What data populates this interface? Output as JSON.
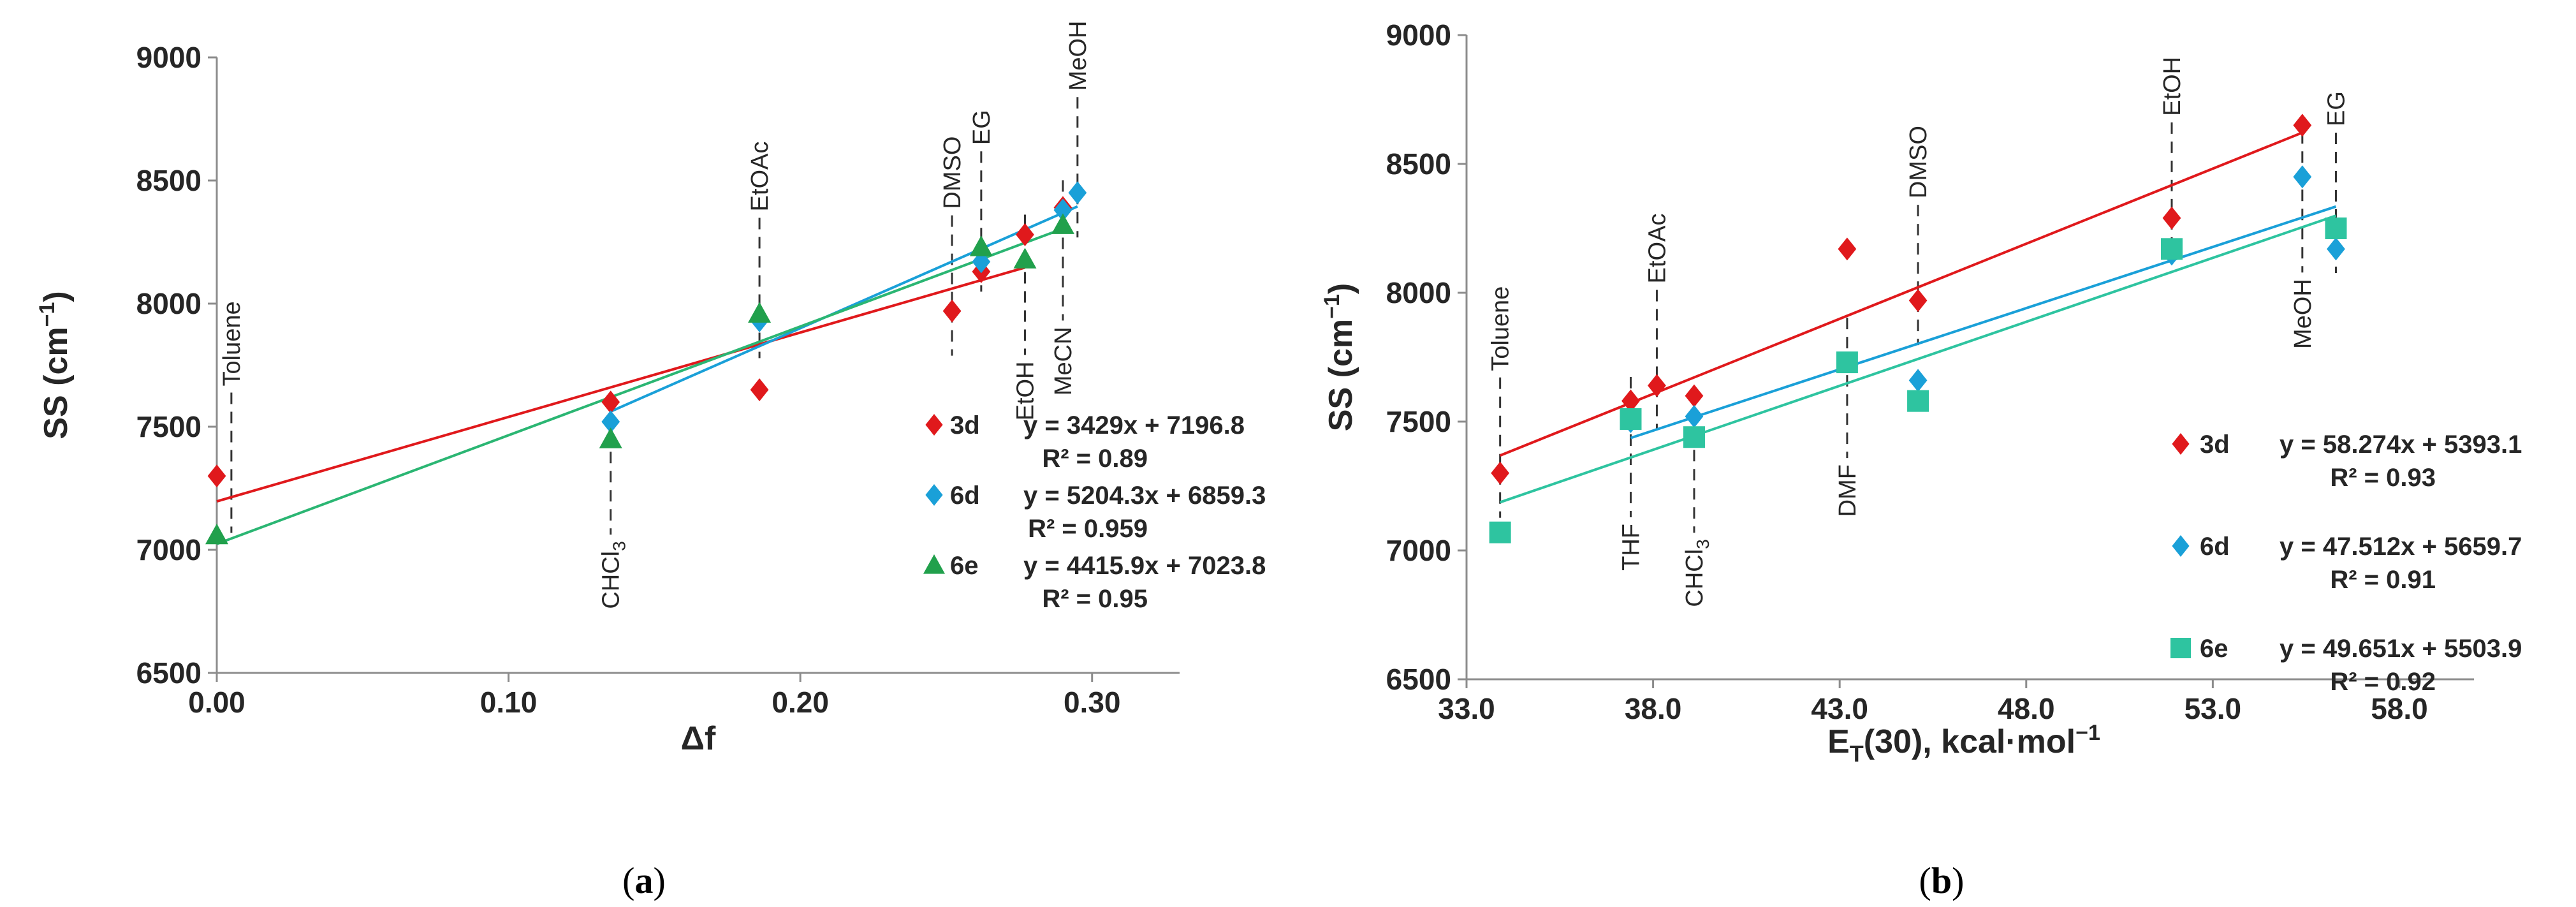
{
  "chart_data": [
    {
      "type": "scatter",
      "panel": "a",
      "caption_letter": "a",
      "xlabel": "Δf",
      "ylabel": "SS (cm",
      "ylabel_sup": "−1",
      "xlim": [
        0,
        0.33
      ],
      "ylim": [
        6500,
        9000
      ],
      "xticks": [
        "0.00",
        "0.10",
        "0.20",
        "0.30"
      ],
      "xtick_values": [
        0,
        0.1,
        0.2,
        0.3
      ],
      "yticks": [
        "6500",
        "7000",
        "7500",
        "8000",
        "8500",
        "9000"
      ],
      "ytick_values": [
        6500,
        7000,
        7500,
        8000,
        8500,
        9000
      ],
      "series": [
        {
          "name": "3d",
          "marker": "diamond",
          "color": "#e0191c",
          "line_color": "#e0191c",
          "x": [
            0.0,
            0.135,
            0.186,
            0.252,
            0.262,
            0.277,
            0.29
          ],
          "y": [
            7300,
            7600,
            7650,
            7970,
            8130,
            8280,
            8390
          ],
          "equation": "y = 3429x + 7196.8",
          "r2": "R² = 0.89",
          "slope": 3429,
          "intercept": 7196.8,
          "fit_range": [
            0,
            0.277
          ]
        },
        {
          "name": "6d",
          "marker": "diamond",
          "color": "#1aa0d8",
          "line_color": "#1aa0d8",
          "x": [
            0.135,
            0.186,
            0.262,
            0.29,
            0.295
          ],
          "y": [
            7520,
            7930,
            8170,
            8380,
            8450
          ],
          "equation": "y = 5204.3x + 6859.3",
          "r2": "R² = 0.959",
          "slope": 5204.3,
          "intercept": 6859.3,
          "fit_range": [
            0.135,
            0.295
          ]
        },
        {
          "name": "6e",
          "marker": "triangle",
          "color": "#21a04c",
          "line_color": "#2bb673",
          "x": [
            0.0,
            0.135,
            0.186,
            0.262,
            0.277,
            0.29
          ],
          "y": [
            7060,
            7450,
            7960,
            8230,
            8180,
            8320
          ],
          "equation": "y = 4415.9x + 7023.8",
          "r2": "R² = 0.95",
          "slope": 4415.9,
          "intercept": 7023.8,
          "fit_range": [
            0,
            0.29
          ]
        }
      ],
      "annotations": [
        {
          "label": "Toluene",
          "x": 0.005,
          "side": "up"
        },
        {
          "label": "CHCl",
          "sub": "3",
          "x": 0.135,
          "side": "down"
        },
        {
          "label": "EtOAc",
          "x": 0.186,
          "side": "up"
        },
        {
          "label": "DMSO",
          "x": 0.252,
          "side": "up"
        },
        {
          "label": "EG",
          "x": 0.262,
          "side": "up"
        },
        {
          "label": "EtOH",
          "x": 0.277,
          "side": "down"
        },
        {
          "label": "MeCN",
          "x": 0.29,
          "side": "down"
        },
        {
          "label": "MeOH",
          "x": 0.295,
          "side": "up"
        }
      ]
    },
    {
      "type": "scatter",
      "panel": "b",
      "caption_letter": "b",
      "xlabel": "E",
      "xlabel_sub": "T",
      "xlabel_rest": "(30), kcal·mol",
      "xlabel_sup": "−1",
      "ylabel": "SS (cm",
      "ylabel_sup": "−1",
      "xlim": [
        33,
        60
      ],
      "ylim": [
        6500,
        9000
      ],
      "xticks": [
        "33.0",
        "38.0",
        "43.0",
        "48.0",
        "53.0",
        "58.0"
      ],
      "xtick_values": [
        33,
        38,
        43,
        48,
        53,
        58
      ],
      "yticks": [
        "6500",
        "7000",
        "7500",
        "8000",
        "8500",
        "9000"
      ],
      "ytick_values": [
        6500,
        7000,
        7500,
        8000,
        8500,
        9000
      ],
      "series": [
        {
          "name": "3d",
          "marker": "diamond",
          "color": "#e0191c",
          "line_color": "#e0191c",
          "x": [
            33.9,
            37.4,
            38.1,
            39.1,
            43.2,
            45.1,
            51.9,
            55.4,
            56.3
          ],
          "y": [
            7300,
            7580,
            7640,
            7600,
            8170,
            7970,
            8290,
            8650,
            8250
          ],
          "equation": "y = 58.274x + 5393.1",
          "r2": "R² = 0.93",
          "slope": 58.274,
          "intercept": 5393.1,
          "fit_range": [
            33.9,
            55.4
          ]
        },
        {
          "name": "6d",
          "marker": "diamond",
          "color": "#1aa0d8",
          "line_color": "#1aa0d8",
          "x": [
            37.4,
            39.1,
            45.1,
            51.9,
            55.4,
            56.3
          ],
          "y": [
            7500,
            7520,
            7660,
            8150,
            8450,
            8170
          ],
          "equation": "y = 47.512x + 5659.7",
          "r2": "R² = 0.91",
          "slope": 47.512,
          "intercept": 5659.7,
          "fit_range": [
            37.4,
            56.3
          ]
        },
        {
          "name": "6e",
          "marker": "square",
          "color": "#2ec4a0",
          "line_color": "#2ec4a0",
          "x": [
            33.9,
            37.4,
            39.1,
            43.2,
            45.1,
            51.9,
            56.3
          ],
          "y": [
            7070,
            7510,
            7440,
            7730,
            7580,
            8170,
            8250
          ],
          "equation": "y = 49.651x + 5503.9",
          "r2": "R² = 0.92",
          "slope": 49.651,
          "intercept": 5503.9,
          "fit_range": [
            33.9,
            56.3
          ]
        }
      ],
      "annotations": [
        {
          "label": "Toluene",
          "x": 33.9,
          "side": "up"
        },
        {
          "label": "THF",
          "x": 37.4,
          "side": "down"
        },
        {
          "label": "EtOAc",
          "x": 38.1,
          "side": "up"
        },
        {
          "label": "CHCl",
          "sub": "3",
          "x": 39.1,
          "side": "down"
        },
        {
          "label": "DMF",
          "x": 43.2,
          "side": "down"
        },
        {
          "label": "DMSO",
          "x": 45.1,
          "side": "up"
        },
        {
          "label": "EtOH",
          "x": 51.9,
          "side": "up"
        },
        {
          "label": "MeOH",
          "x": 55.4,
          "side": "down"
        },
        {
          "label": "EG",
          "x": 56.3,
          "side": "up"
        }
      ]
    }
  ]
}
